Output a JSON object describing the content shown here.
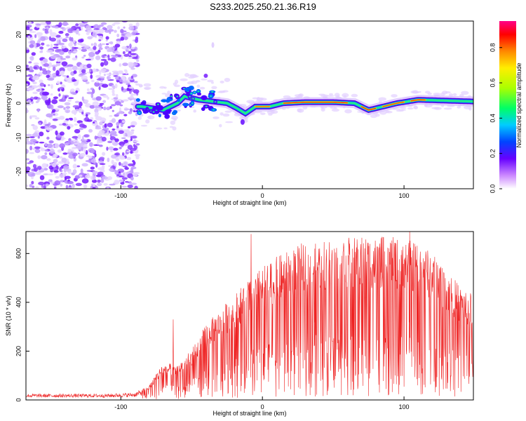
{
  "title": "S233.2025.250.21.36.R19",
  "chart_data": [
    {
      "type": "heatmap",
      "xlabel": "Height of straight line (km)",
      "ylabel": "Frequency (Hz)",
      "xlim": [
        -167,
        149
      ],
      "ylim": [
        -25,
        24
      ],
      "xticks": [
        -100,
        0,
        100
      ],
      "yticks": [
        -20,
        -10,
        0,
        10,
        20
      ],
      "colorbar": {
        "label": "Normalized spectral amplitude",
        "range": [
          0,
          0.95
        ],
        "ticks": [
          0.0,
          0.2,
          0.4,
          0.6,
          0.8
        ]
      },
      "ridge_frequency_hz": [
        {
          "x": -85,
          "y": -1
        },
        {
          "x": -70,
          "y": -2
        },
        {
          "x": -60,
          "y": 0
        },
        {
          "x": -55,
          "y": 2
        },
        {
          "x": -45,
          "y": 1
        },
        {
          "x": -35,
          "y": 0.5
        },
        {
          "x": -25,
          "y": 0
        },
        {
          "x": -18,
          "y": -1.5
        },
        {
          "x": -12,
          "y": -3
        },
        {
          "x": -5,
          "y": -1
        },
        {
          "x": 5,
          "y": -1
        },
        {
          "x": 15,
          "y": 0
        },
        {
          "x": 30,
          "y": 0.3
        },
        {
          "x": 50,
          "y": 0.3
        },
        {
          "x": 65,
          "y": 0
        },
        {
          "x": 75,
          "y": -2
        },
        {
          "x": 85,
          "y": -1
        },
        {
          "x": 95,
          "y": 0
        },
        {
          "x": 110,
          "y": 1
        },
        {
          "x": 149,
          "y": 0.5
        }
      ]
    },
    {
      "type": "line",
      "xlabel": "Height of straight line (km)",
      "ylabel": "SNR (10 * v/v)",
      "xlim": [
        -167,
        149
      ],
      "ylim": [
        0,
        690
      ],
      "xticks": [
        -100,
        0,
        100
      ],
      "yticks": [
        0,
        200,
        400,
        600
      ],
      "color": "#ee2222",
      "envelope": [
        {
          "x": -167,
          "y": 25
        },
        {
          "x": -110,
          "y": 25
        },
        {
          "x": -90,
          "y": 30
        },
        {
          "x": -80,
          "y": 60
        },
        {
          "x": -70,
          "y": 150
        },
        {
          "x": -60,
          "y": 140
        },
        {
          "x": -50,
          "y": 200
        },
        {
          "x": -40,
          "y": 300
        },
        {
          "x": -30,
          "y": 360
        },
        {
          "x": -20,
          "y": 420
        },
        {
          "x": -10,
          "y": 480
        },
        {
          "x": 0,
          "y": 530
        },
        {
          "x": 10,
          "y": 570
        },
        {
          "x": 20,
          "y": 600
        },
        {
          "x": 30,
          "y": 630
        },
        {
          "x": 50,
          "y": 645
        },
        {
          "x": 70,
          "y": 650
        },
        {
          "x": 90,
          "y": 650
        },
        {
          "x": 110,
          "y": 630
        },
        {
          "x": 125,
          "y": 560
        },
        {
          "x": 140,
          "y": 450
        },
        {
          "x": 149,
          "y": 420
        }
      ],
      "peaks": [
        {
          "x": -8,
          "y": 680
        },
        {
          "x": -63,
          "y": 330
        },
        {
          "x": 104,
          "y": 690
        },
        {
          "x": 37,
          "y": 620
        }
      ]
    }
  ]
}
